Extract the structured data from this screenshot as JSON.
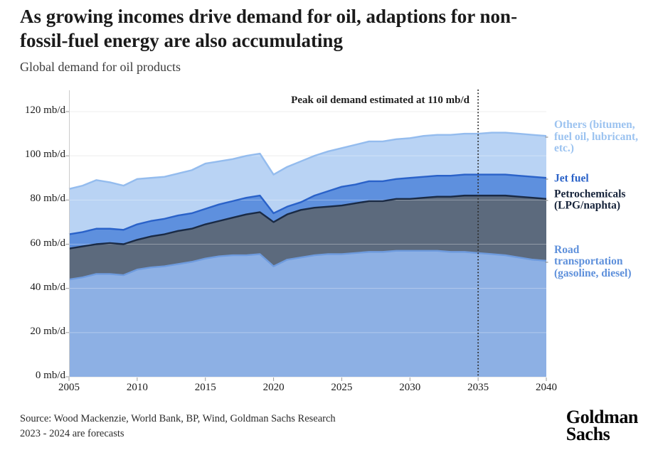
{
  "header": {
    "title_line1": "As growing incomes drive demand for oil, adaptions for non-",
    "title_line2": "fossil-fuel energy are also accumulating",
    "subtitle": "Global demand for oil products"
  },
  "annotation": {
    "text": "Peak oil demand estimated at 110 mb/d"
  },
  "footer": {
    "source_line1": "Source: Wood Mackenzie, World Bank, BP, Wind, Goldman Sachs Research",
    "source_line2": "2023 - 2024 are forecasts",
    "logo_line1": "Goldman",
    "logo_line2": "Sachs"
  },
  "colors": {
    "grid": "#e5e5e5",
    "grid_overlay": "rgba(255,255,255,0.33)",
    "axis_line": "#cbcbcb",
    "tick": "#9a9a9a",
    "dotted_line": "#2b2b2b",
    "title_text": "#1a1a1a",
    "subtitle_text": "#3c3c3c",
    "source_text": "#2b2b2b"
  },
  "chart_data": {
    "type": "area",
    "stacked": true,
    "title": "Global demand for oil products",
    "unit": "mb/d",
    "xlabel": "",
    "ylabel": "mb/d",
    "ylim": [
      0,
      125
    ],
    "grid": true,
    "legend_position": "right",
    "peak_line_year": 2035,
    "x": [
      2005,
      2006,
      2007,
      2008,
      2009,
      2010,
      2011,
      2012,
      2013,
      2014,
      2015,
      2016,
      2017,
      2018,
      2019,
      2020,
      2021,
      2022,
      2023,
      2024,
      2025,
      2026,
      2027,
      2028,
      2029,
      2030,
      2031,
      2032,
      2033,
      2034,
      2035,
      2036,
      2037,
      2038,
      2039,
      2040
    ],
    "xticks": [
      2005,
      2010,
      2015,
      2020,
      2025,
      2030,
      2035,
      2040
    ],
    "yticks": [
      0,
      20,
      40,
      60,
      80,
      100,
      120
    ],
    "ytick_labels": [
      "0 mb/d",
      "20 mb/d",
      "40 mb/d",
      "60 mb/d",
      "80 mb/d",
      "100 mb/d",
      "120 mb/d"
    ],
    "series": [
      {
        "id": "road-transportation",
        "name": "Road transportation (gasoline, diesel)",
        "fill": "#8db0e4",
        "stroke": "#6e9bde",
        "label_color": "#5e90db",
        "values": [
          44,
          45,
          46.5,
          46.5,
          46,
          48.5,
          49.5,
          50,
          51,
          52,
          53.5,
          54.5,
          55,
          55,
          55.5,
          50,
          53,
          54,
          55,
          55.5,
          55.5,
          56,
          56.5,
          56.5,
          57,
          57,
          57,
          57,
          56.5,
          56.5,
          56,
          55.5,
          55,
          54,
          53,
          52.5
        ]
      },
      {
        "id": "petrochemicals",
        "name": "Petrochemicals (LPG/naphta)",
        "fill": "#5c6a7d",
        "stroke": "#1a2a44",
        "label_color": "#17243b",
        "values": [
          14,
          14,
          13.5,
          14,
          14,
          13.5,
          14,
          14.5,
          15,
          15,
          15.5,
          16,
          17,
          18.5,
          19,
          20,
          20.5,
          21.5,
          21.5,
          21.5,
          22,
          22.5,
          23,
          23,
          23.5,
          23.5,
          24,
          24.5,
          25,
          25.5,
          26,
          26.5,
          27,
          27.5,
          28,
          28
        ]
      },
      {
        "id": "jet-fuel",
        "name": "Jet fuel",
        "fill": "#5e90de",
        "stroke": "#2a62c9",
        "label_color": "#2a62c8",
        "values": [
          6.5,
          6.5,
          7,
          6.5,
          6.5,
          7,
          7,
          7,
          7,
          7,
          7,
          7.5,
          7.5,
          7.5,
          7.5,
          4,
          3.5,
          3.5,
          5.5,
          7,
          8.5,
          8.5,
          9,
          9,
          9,
          9.5,
          9.5,
          9.5,
          9.5,
          9.5,
          9.5,
          9.5,
          9.5,
          9.5,
          9.5,
          9.5
        ]
      },
      {
        "id": "others",
        "name": "Others (bitumen, fuel oil, lubricant, etc.)",
        "fill": "#b9d3f4",
        "stroke": "#94bcee",
        "label_color": "#9cc3f0",
        "values": [
          20.5,
          21,
          22,
          21,
          20,
          20.5,
          19.5,
          19,
          19,
          19.5,
          20.5,
          19.5,
          19,
          19,
          19,
          17.5,
          18,
          18.5,
          18,
          18,
          17.5,
          18,
          18,
          18,
          18,
          18,
          18.5,
          18.5,
          18.5,
          18.5,
          18.5,
          19,
          19,
          19,
          19,
          19
        ]
      }
    ],
    "legend": [
      {
        "series_index": 3,
        "label": "Others (bitumen, fuel oil, lubricant, etc.)"
      },
      {
        "series_index": 2,
        "label": "Jet fuel"
      },
      {
        "series_index": 1,
        "label": "Petrochemicals (LPG/naphta)"
      },
      {
        "series_index": 0,
        "label": "Road transportation (gasoline, diesel)"
      }
    ]
  }
}
